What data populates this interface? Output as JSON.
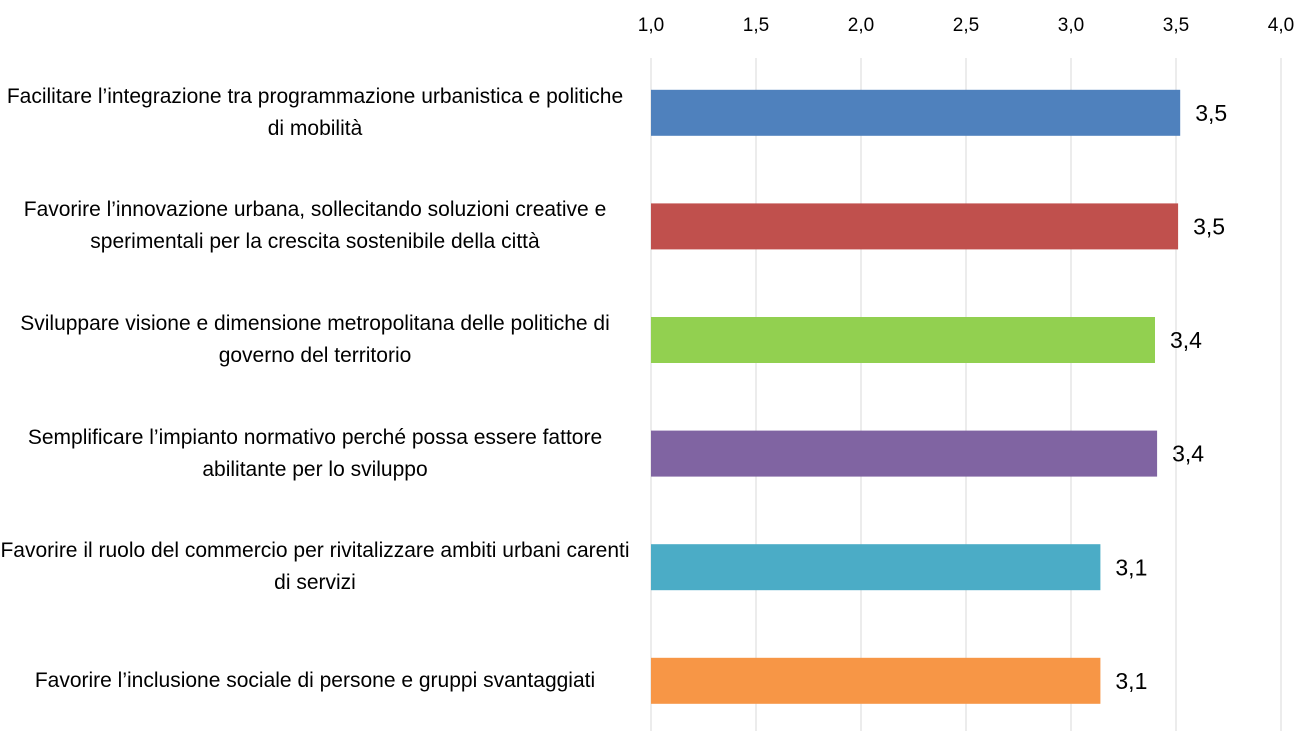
{
  "chart_data": {
    "type": "bar",
    "orientation": "horizontal",
    "categories": [
      "Facilitare l’integrazione tra programmazione urbanistica e politiche di mobilità",
      "Favorire l’innovazione urbana, sollecitando soluzioni creative e sperimentali per la crescita sostenibile della città",
      "Sviluppare visione e dimensione metropolitana delle politiche di governo del territorio",
      "Semplificare l’impianto normativo perché possa essere fattore abilitante per lo sviluppo",
      "Favorire il ruolo del commercio per rivitalizzare ambiti urbani carenti di servizi",
      "Favorire l’inclusione sociale di persone e gruppi svantaggiati"
    ],
    "values": [
      3.52,
      3.51,
      3.4,
      3.41,
      3.14,
      3.14
    ],
    "value_labels": [
      "3,5",
      "3,5",
      "3,4",
      "3,4",
      "3,1",
      "3,1"
    ],
    "colors": [
      "#4f81bd",
      "#c0504d",
      "#92d050",
      "#8064a2",
      "#4bacc6",
      "#f79646"
    ],
    "xlim": [
      1.0,
      4.0
    ],
    "xticks": [
      {
        "value": 1.0,
        "label": "1,0"
      },
      {
        "value": 1.5,
        "label": "1,5"
      },
      {
        "value": 2.0,
        "label": "2,0"
      },
      {
        "value": 2.5,
        "label": "2,5"
      },
      {
        "value": 3.0,
        "label": "3,0"
      },
      {
        "value": 3.5,
        "label": "3,5"
      },
      {
        "value": 4.0,
        "label": "4,0"
      }
    ],
    "grid": true
  }
}
